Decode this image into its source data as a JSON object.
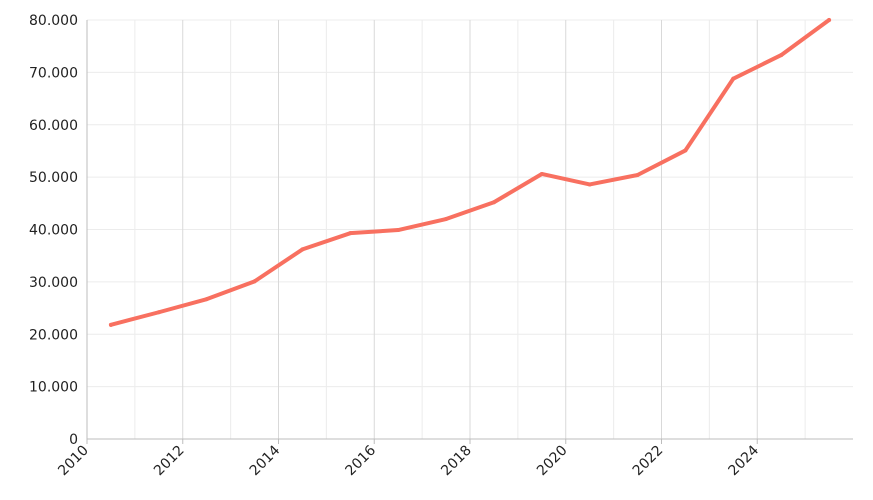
{
  "chart_data": {
    "type": "line",
    "title": "",
    "xlabel": "",
    "ylabel": "",
    "xlim": [
      2010,
      2026
    ],
    "ylim": [
      0,
      80000
    ],
    "grid": true,
    "legend": "none",
    "x_major_ticks": [
      2010,
      2012,
      2014,
      2016,
      2018,
      2020,
      2022,
      2024
    ],
    "x_tick_labels": [
      "2010",
      "2012",
      "2014",
      "2016",
      "2018",
      "2020",
      "2022",
      "2024"
    ],
    "x_minor_ticks": [
      2011,
      2013,
      2015,
      2017,
      2019,
      2021,
      2023,
      2025
    ],
    "y_ticks": [
      0,
      10000,
      20000,
      30000,
      40000,
      50000,
      60000,
      70000,
      80000
    ],
    "y_tick_labels": [
      "0",
      "10.000",
      "20.000",
      "30.000",
      "40.000",
      "50.000",
      "60.000",
      "70.000",
      "80.000"
    ],
    "series": [
      {
        "color": "#f87060",
        "x": [
          2010.5,
          2011.5,
          2012.5,
          2013.5,
          2014.5,
          2015.5,
          2016.5,
          2017.5,
          2018.5,
          2019.5,
          2020.5,
          2021.5,
          2022.5,
          2023.5,
          2024.5,
          2025.5
        ],
        "values": [
          21800,
          24200,
          26700,
          30100,
          36200,
          39300,
          39900,
          42000,
          45200,
          50600,
          48600,
          50400,
          55100,
          68800,
          73300,
          80000
        ]
      }
    ]
  }
}
